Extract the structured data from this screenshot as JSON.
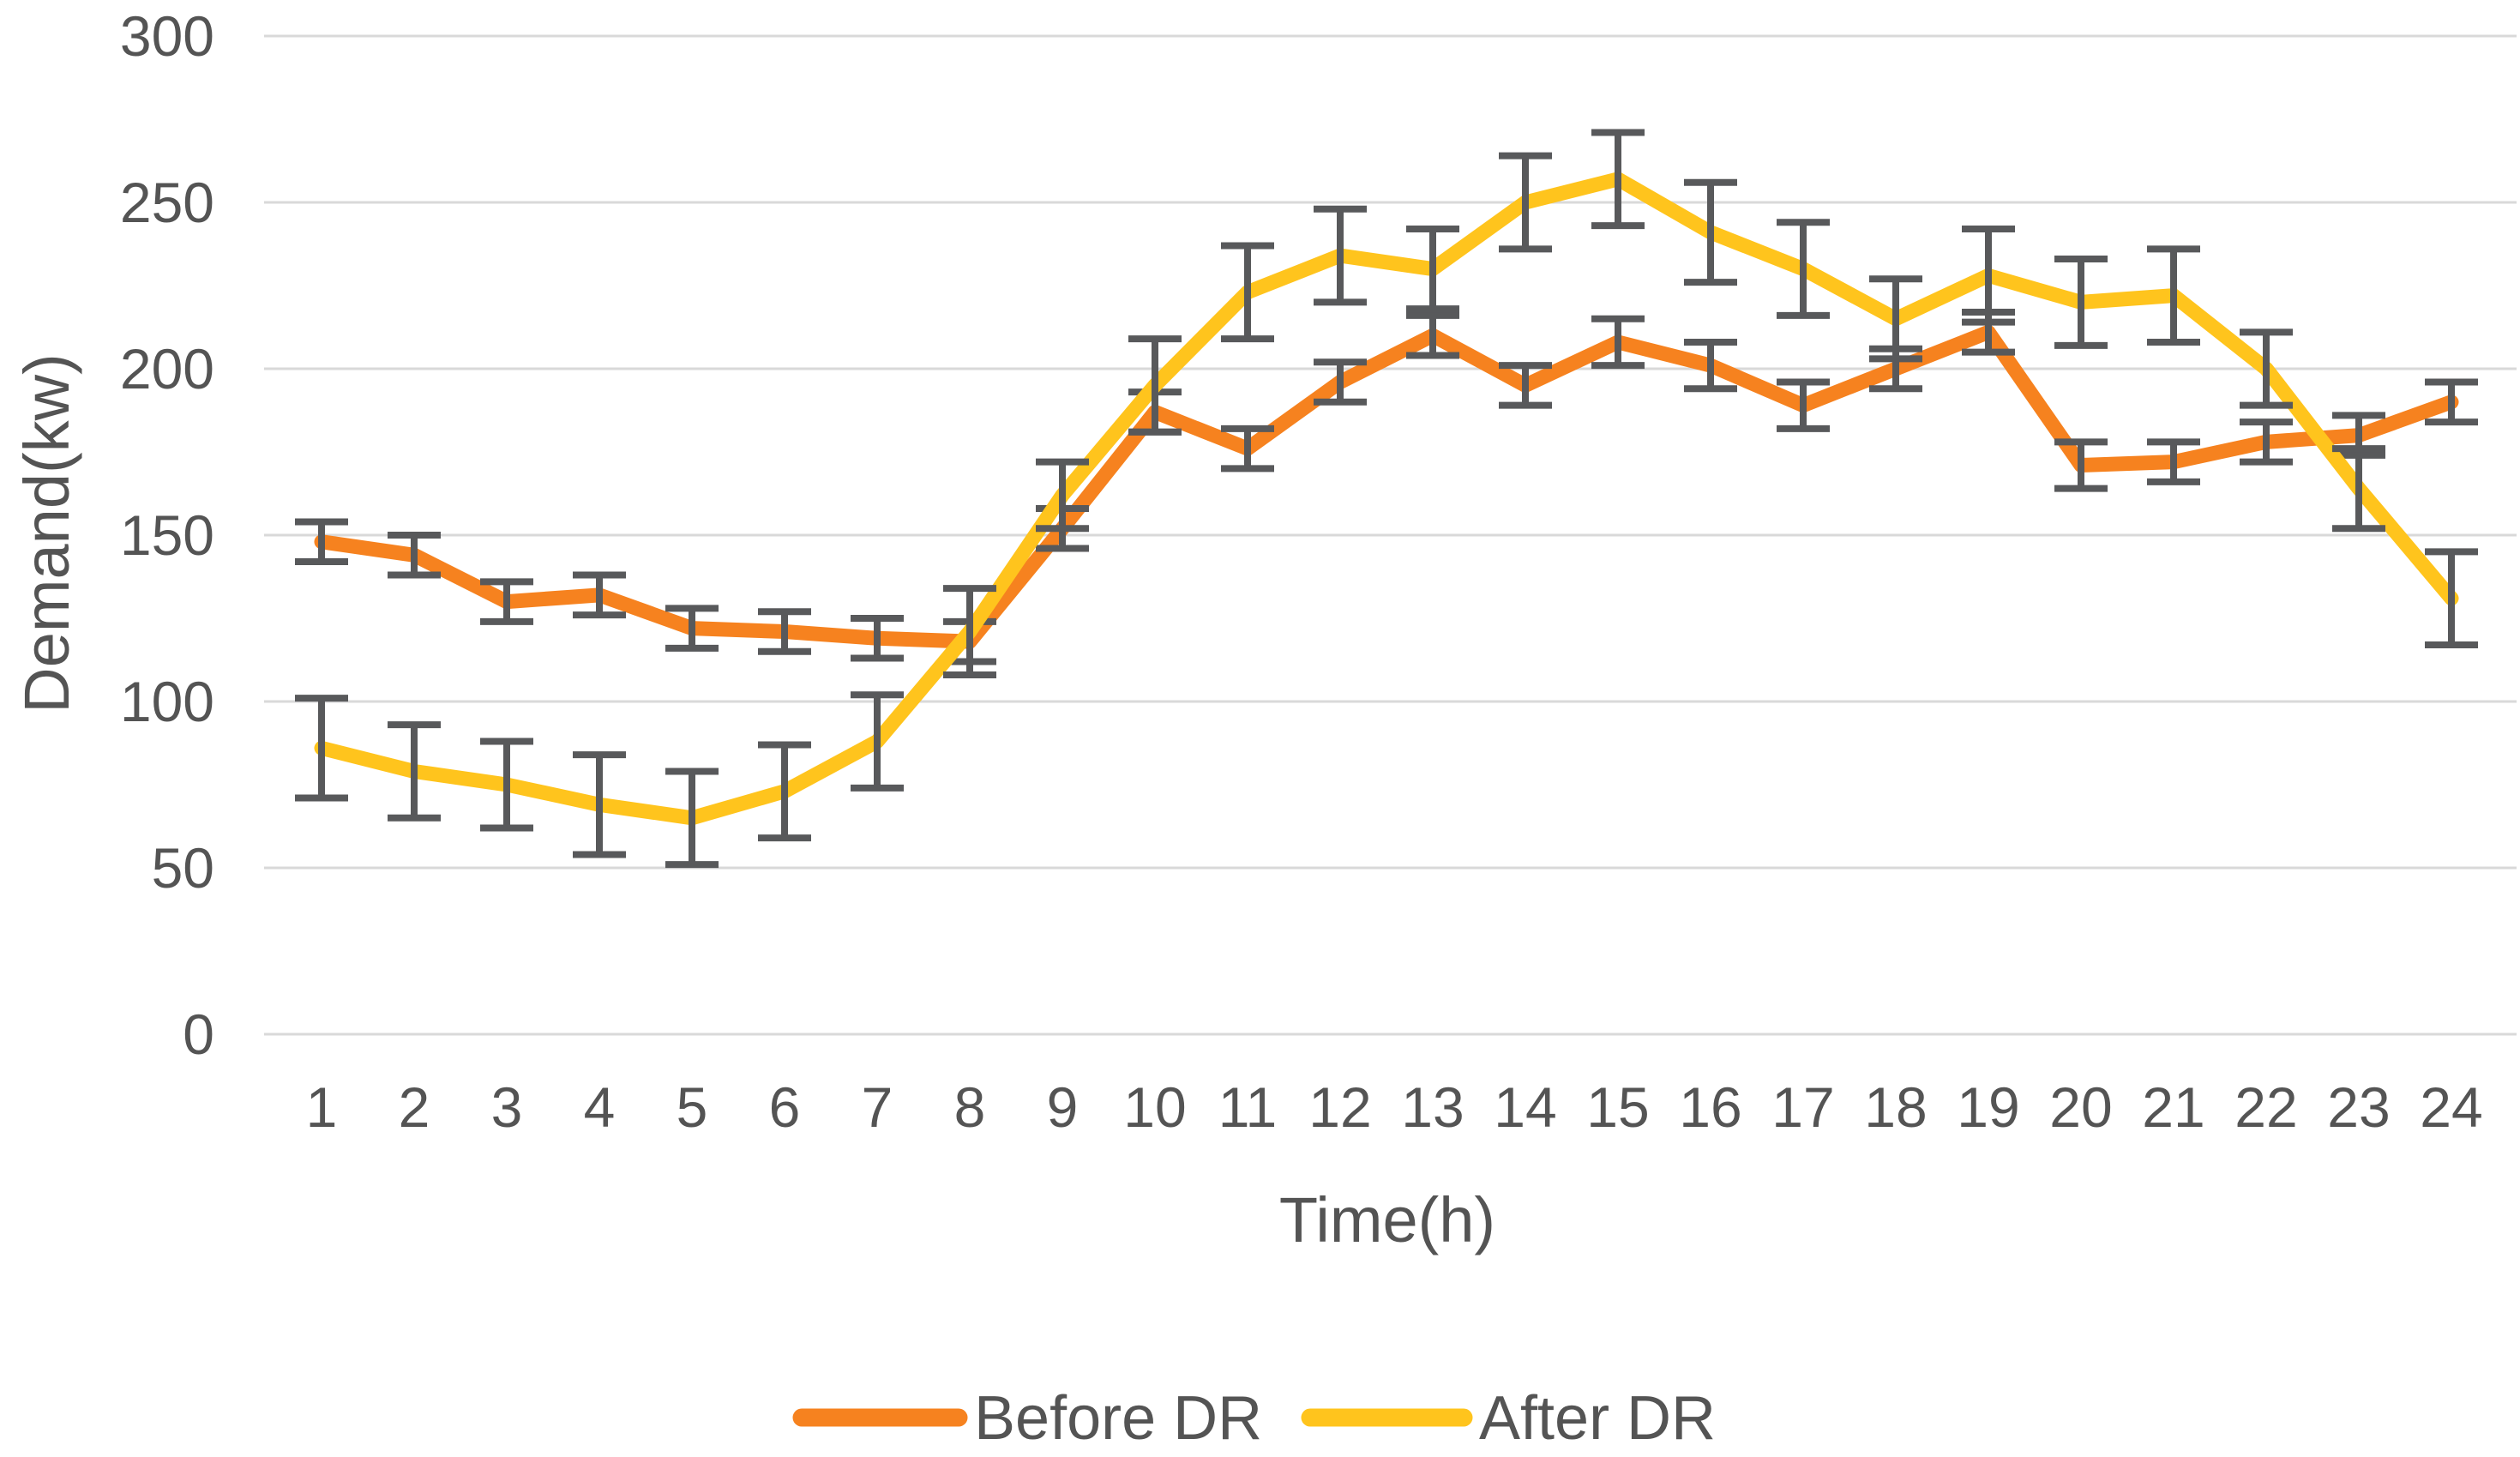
{
  "chart_data": {
    "type": "line",
    "title": "",
    "xlabel": "Time(h)",
    "ylabel": "Demand(kw)",
    "x": [
      1,
      2,
      3,
      4,
      5,
      6,
      7,
      8,
      9,
      10,
      11,
      12,
      13,
      14,
      15,
      16,
      17,
      18,
      19,
      20,
      21,
      22,
      23,
      24
    ],
    "x_tick_labels": [
      "1",
      "2",
      "3",
      "4",
      "5",
      "6",
      "7",
      "8",
      "9",
      "10",
      "11",
      "12",
      "13",
      "14",
      "15",
      "16",
      "17",
      "18",
      "19",
      "20",
      "21",
      "22",
      "23",
      "24"
    ],
    "ylim": [
      0,
      300
    ],
    "yticks": [
      0,
      50,
      100,
      150,
      200,
      250,
      300
    ],
    "y_tick_labels": [
      "0",
      "50",
      "100",
      "150",
      "200",
      "250",
      "300"
    ],
    "grid": true,
    "legend_position": "bottom-center",
    "error_bars": true,
    "series": [
      {
        "name": "Before DR",
        "color": "#F6821F",
        "values": [
          148,
          144,
          130,
          132,
          122,
          121,
          119,
          118,
          152,
          187,
          176,
          196,
          210,
          195,
          208,
          201,
          189,
          200,
          211,
          171,
          172,
          178,
          180,
          190
        ],
        "error_plus_minus": [
          6,
          6,
          6,
          6,
          6,
          6,
          6,
          6,
          6,
          6,
          6,
          6,
          6,
          6,
          7,
          7,
          7,
          6,
          6,
          7,
          6,
          6,
          6,
          6
        ]
      },
      {
        "name": "After DR",
        "color": "#FFC41D",
        "values": [
          86,
          79,
          75,
          69,
          65,
          73,
          88,
          121,
          162,
          195,
          223,
          234,
          230,
          250,
          257,
          241,
          230,
          215,
          228,
          220,
          222,
          200,
          164,
          131
        ],
        "error_plus_minus": [
          15,
          14,
          13,
          15,
          14,
          14,
          14,
          13,
          10,
          14,
          14,
          14,
          12,
          14,
          14,
          15,
          14,
          12,
          14,
          13,
          14,
          11,
          12,
          14
        ]
      }
    ]
  },
  "styles": {
    "background": "#FFFFFF",
    "gridline_color": "#D9D9D9",
    "error_bar_color": "#58595B",
    "text_color": "#545454"
  }
}
